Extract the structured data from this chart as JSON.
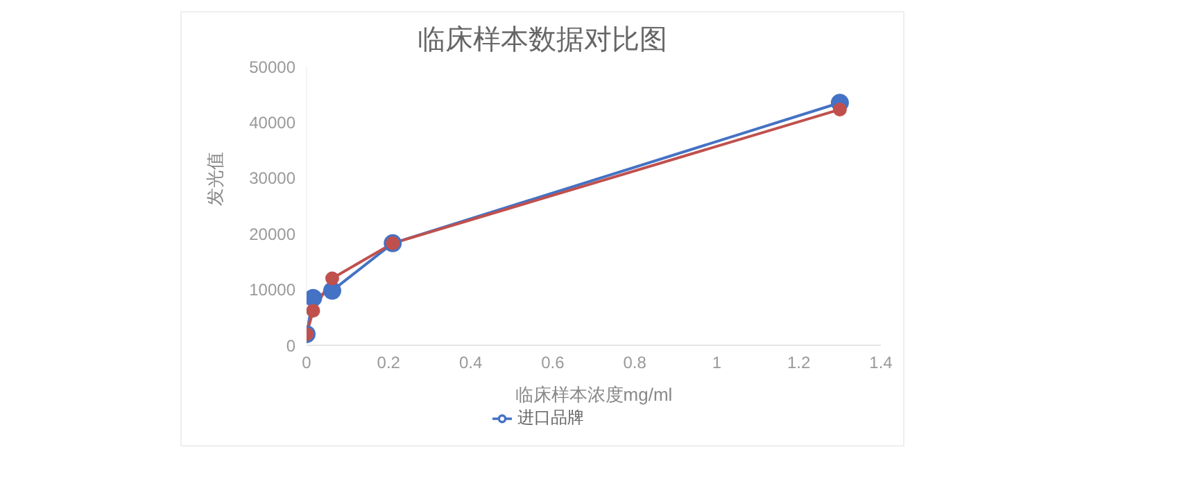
{
  "chart_data": {
    "type": "line",
    "title": "临床样本数据对比图",
    "xlabel": "临床样本浓度mg/ml",
    "ylabel": "发光值",
    "x": [
      0,
      0.016,
      0.0625,
      0.21,
      1.3
    ],
    "series": [
      {
        "name": "进口品牌",
        "color": "#4472c4",
        "values": [
          2000,
          8500,
          9800,
          18300,
          43500
        ]
      },
      {
        "color": "#c0504d",
        "values": [
          2000,
          6200,
          12000,
          18300,
          42300
        ]
      }
    ],
    "xlim": [
      0,
      1.4
    ],
    "xticks": [
      0,
      0.2,
      0.4,
      0.6,
      0.8,
      1,
      1.2,
      1.4
    ],
    "ylim": [
      0,
      50000
    ],
    "yticks": [
      0,
      10000,
      20000,
      30000,
      40000,
      50000
    ],
    "legend": "bottom",
    "marker": "circle",
    "line_style": "solid"
  }
}
